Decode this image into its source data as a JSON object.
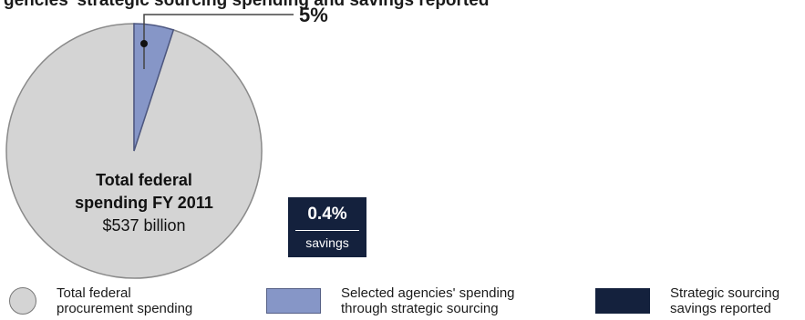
{
  "chart_data": {
    "type": "pie",
    "title": "gencies' strategic sourcing spending and savings reported",
    "slices": [
      {
        "label": "Total federal procurement spending",
        "value": 95,
        "color": "#d4d4d4"
      },
      {
        "label": "Selected agencies' spending through strategic sourcing",
        "value": 5,
        "color": "#8696c7"
      }
    ],
    "callout_label": "5%",
    "center_label": {
      "title_line1": "Total federal",
      "title_line2": "spending FY 2011",
      "amount": "$537 billion"
    },
    "savings_box": {
      "value": "0.4%",
      "label": "savings",
      "color": "#14213d"
    },
    "legend": [
      {
        "label": "Total federal\nprocurement spending",
        "swatch": "circle",
        "color": "#d4d4d4"
      },
      {
        "label": "Selected agencies' spending\nthrough strategic sourcing",
        "swatch": "rect",
        "color": "#8696c7"
      },
      {
        "label": "Strategic sourcing\nsavings reported",
        "swatch": "rect",
        "color": "#14213d"
      }
    ]
  }
}
